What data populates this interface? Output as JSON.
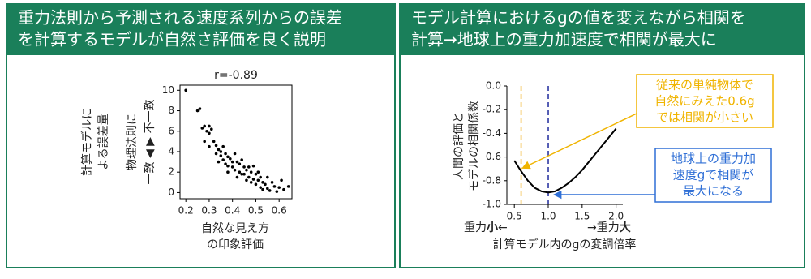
{
  "panels": [
    {
      "header": [
        "重力法則から予測される速度系列からの誤差",
        "を計算するモデルが自然さ評価を良く説明"
      ]
    },
    {
      "header": [
        "モデル計算におけるgの値を変えながら相関を",
        "計算→地球上の重力加速度で相関が最大に"
      ]
    }
  ],
  "chart_data": [
    {
      "type": "scatter",
      "title": "r=-0.89",
      "y_label": [
        "計算モデルに",
        "よる誤差量"
      ],
      "y_label_2": [
        "物理法則に",
        "一致 ◀  ▶ 不一致"
      ],
      "x_label": [
        "自然な見え方",
        "の印象評価"
      ],
      "color": "#000000",
      "x": [
        0.2,
        0.25,
        0.26,
        0.27,
        0.28,
        0.29,
        0.3,
        0.31,
        0.3,
        0.32,
        0.33,
        0.33,
        0.34,
        0.35,
        0.35,
        0.36,
        0.36,
        0.37,
        0.37,
        0.38,
        0.38,
        0.39,
        0.4,
        0.4,
        0.41,
        0.41,
        0.42,
        0.42,
        0.43,
        0.43,
        0.44,
        0.45,
        0.45,
        0.46,
        0.46,
        0.47,
        0.47,
        0.48,
        0.48,
        0.49,
        0.49,
        0.5,
        0.5,
        0.51,
        0.51,
        0.52,
        0.52,
        0.53,
        0.53,
        0.54,
        0.55,
        0.55,
        0.56,
        0.57,
        0.58,
        0.59,
        0.6,
        0.61,
        0.62,
        0.64,
        0.3,
        0.28,
        0.34,
        0.38,
        0.44
      ],
      "values": [
        10,
        8,
        8.2,
        6.3,
        6.5,
        6,
        5.8,
        6.2,
        4.5,
        5,
        4.6,
        3.8,
        4.2,
        4,
        3.6,
        3.2,
        4.5,
        3.8,
        2.8,
        3.5,
        2,
        3.3,
        3,
        2.5,
        3.8,
        2.2,
        3,
        1.5,
        2.8,
        2,
        3.2,
        2.5,
        1.8,
        2.2,
        1.2,
        2.5,
        1.5,
        2,
        1,
        2.6,
        1.3,
        1.8,
        0.8,
        1.2,
        2,
        0.5,
        1.5,
        1,
        0.3,
        0.8,
        1.5,
        0.4,
        0.2,
        1,
        0.6,
        0.1,
        0.5,
        1.2,
        0.3,
        0.6,
        6.5,
        5,
        3,
        2.6,
        1.8
      ],
      "xlim": [
        0.175,
        0.655
      ],
      "xticks": [
        0.2,
        0.3,
        0.4,
        0.5,
        0.6
      ],
      "ylim": [
        -0.6,
        10.5
      ],
      "yticks": [
        0,
        2,
        4,
        6,
        8,
        10
      ]
    },
    {
      "type": "line",
      "y_label": [
        "人間の評価と",
        "モデルの相関係数"
      ],
      "x_label": "計算モデル内のgの変調倍率",
      "x_end_left": [
        "重力",
        "小",
        "←"
      ],
      "x_end_right": [
        "→重力",
        "大"
      ],
      "color": "#000000",
      "x": [
        0.5,
        0.6,
        0.7,
        0.8,
        0.9,
        1.0,
        1.1,
        1.2,
        1.3,
        1.4,
        1.5,
        1.6,
        1.7,
        1.8,
        1.9,
        2.0
      ],
      "values": [
        -0.63,
        -0.72,
        -0.8,
        -0.86,
        -0.89,
        -0.9,
        -0.89,
        -0.86,
        -0.82,
        -0.77,
        -0.71,
        -0.64,
        -0.57,
        -0.5,
        -0.43,
        -0.36
      ],
      "xlim": [
        0.39,
        2.1
      ],
      "xticks": [
        0.5,
        {
          "value": 1,
          "label": "1.0"
        },
        1.5,
        {
          "value": 2,
          "label": "2.0"
        }
      ],
      "ylim": [
        -1,
        0
      ],
      "yticks": [
        {
          "value": -1,
          "label": "-1.0"
        },
        -0.8,
        -0.6,
        -0.4,
        -0.2,
        {
          "value": 0,
          "label": "0.0"
        }
      ],
      "vlines": [
        {
          "x": 0.6,
          "color": "#f0a500"
        },
        {
          "x": 1.0,
          "color": "#1f2a9c"
        }
      ],
      "annotations": [
        {
          "text": [
            "従来の単純物体で",
            "自然にみえた0.6g",
            "では相関が小さい"
          ],
          "color": "#f0b400"
        },
        {
          "text": [
            "地球上の重力加",
            "速度gで相関が",
            "最大になる"
          ],
          "color": "#2f6fd6"
        }
      ]
    }
  ]
}
